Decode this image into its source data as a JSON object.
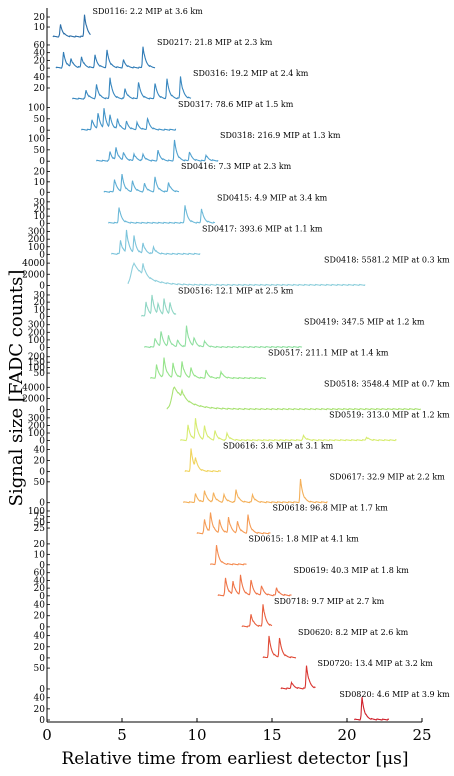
{
  "chart_data": {
    "type": "line",
    "xlabel": "Relative time from earliest detector [μs]",
    "ylabel": "Signal size [FADC counts]",
    "xlim": [
      0,
      25
    ],
    "xticks": [
      "0",
      "5",
      "10",
      "15",
      "20",
      "25"
    ],
    "grid": false,
    "panels": [
      {
        "name": "SD0116",
        "label": "SD0116: 2.2 MIP at 3.6 km",
        "color": "#2b6ea8",
        "yticks": [
          "20",
          "10"
        ],
        "ymax": 25,
        "t_start": 0.4,
        "t_end": 2.9,
        "peaks": [
          [
            0.9,
            12
          ],
          [
            2.5,
            22
          ]
        ]
      },
      {
        "name": "SD0217",
        "label": "SD0217: 21.8 MIP at 2.3 km",
        "color": "#2f7bb6",
        "yticks": [
          "60",
          "40",
          "20",
          "0"
        ],
        "ymax": 65,
        "t_start": 0.6,
        "t_end": 7.2,
        "peaks": [
          [
            1.1,
            40
          ],
          [
            1.6,
            22
          ],
          [
            2.3,
            28
          ],
          [
            3.2,
            32
          ],
          [
            4.0,
            45
          ],
          [
            5.1,
            20
          ],
          [
            6.4,
            55
          ]
        ]
      },
      {
        "name": "SD0316",
        "label": "SD0316: 19.2 MIP at 2.4 km",
        "color": "#3887bf",
        "yticks": [
          "40",
          "20"
        ],
        "ymax": 45,
        "t_start": 1.7,
        "t_end": 9.6,
        "peaks": [
          [
            2.6,
            15
          ],
          [
            3.3,
            25
          ],
          [
            4.2,
            38
          ],
          [
            5.2,
            18
          ],
          [
            6.1,
            30
          ],
          [
            7.2,
            28
          ],
          [
            8.0,
            35
          ],
          [
            8.9,
            40
          ]
        ]
      },
      {
        "name": "SD0317",
        "label": "SD0317: 78.6 MIP at 1.5 km",
        "color": "#4394c8",
        "yticks": [
          "100",
          "50",
          "0"
        ],
        "ymax": 110,
        "t_start": 2.3,
        "t_end": 8.6,
        "peaks": [
          [
            3.0,
            45
          ],
          [
            3.4,
            70
          ],
          [
            3.8,
            85
          ],
          [
            4.2,
            55
          ],
          [
            4.7,
            45
          ],
          [
            5.3,
            35
          ],
          [
            6.0,
            30
          ],
          [
            6.7,
            50
          ]
        ]
      },
      {
        "name": "SD0318",
        "label": "SD0318: 216.9 MIP at 1.3 km",
        "color": "#4fa0cf",
        "yticks": [
          "100",
          "50",
          "0"
        ],
        "ymax": 110,
        "t_start": 3.3,
        "t_end": 11.4,
        "peaks": [
          [
            4.2,
            40
          ],
          [
            4.6,
            55
          ],
          [
            5.1,
            35
          ],
          [
            5.8,
            30
          ],
          [
            6.4,
            28
          ],
          [
            7.4,
            45
          ],
          [
            8.5,
            90
          ],
          [
            9.5,
            40
          ],
          [
            10.6,
            25
          ]
        ]
      },
      {
        "name": "SD0416",
        "label": "SD0416: 7.3 MIP at 2.3 km",
        "color": "#5cadd4",
        "yticks": [
          "20",
          "10",
          "0"
        ],
        "ymax": 24,
        "t_start": 3.8,
        "t_end": 8.8,
        "peaks": [
          [
            4.5,
            12
          ],
          [
            5.0,
            16
          ],
          [
            5.7,
            10
          ],
          [
            6.5,
            8
          ],
          [
            7.2,
            14
          ],
          [
            8.1,
            9
          ]
        ]
      },
      {
        "name": "SD0415",
        "label": "SD0415: 4.9 MIP at 3.4 km",
        "color": "#6cb9d8",
        "yticks": [
          "30",
          "20",
          "10",
          "0"
        ],
        "ymax": 35,
        "t_start": 4.1,
        "t_end": 11.2,
        "peaks": [
          [
            4.8,
            22
          ],
          [
            9.2,
            25
          ],
          [
            10.3,
            20
          ]
        ]
      },
      {
        "name": "SD0417",
        "label": "SD0417: 393.6 MIP at 1.1 km",
        "color": "#7cc4db",
        "yticks": [
          "300",
          "200",
          "100",
          "0"
        ],
        "ymax": 330,
        "t_start": 4.3,
        "t_end": 10.2,
        "peaks": [
          [
            4.9,
            180
          ],
          [
            5.3,
            300
          ],
          [
            5.8,
            220
          ],
          [
            6.4,
            140
          ],
          [
            7.1,
            90
          ]
        ]
      },
      {
        "name": "SD0418",
        "label": "SD0418: 5581.2 MIP at 0.3 km",
        "color": "#8ecfdc",
        "yticks": [
          "4000",
          "2000",
          "0"
        ],
        "ymax": 4500,
        "t_start": 5.4,
        "t_end": 21.2,
        "peaks": [
          [
            5.8,
            3800
          ],
          [
            6.4,
            2000
          ]
        ]
      },
      {
        "name": "SD0516",
        "label": "SD0516: 12.1 MIP at 2.5 km",
        "color": "#8fd6c4",
        "yticks": [
          "30",
          "20",
          "10",
          "0"
        ],
        "ymax": 35,
        "t_start": 6.3,
        "t_end": 8.6,
        "peaks": [
          [
            6.6,
            20
          ],
          [
            7.0,
            28
          ],
          [
            7.4,
            15
          ],
          [
            7.8,
            22
          ],
          [
            8.2,
            16
          ]
        ]
      },
      {
        "name": "SD0419",
        "label": "SD0419: 347.5 MIP at 1.2 km",
        "color": "#8fdfa0",
        "yticks": [
          "300",
          "200",
          "100",
          "0"
        ],
        "ymax": 330,
        "t_start": 6.5,
        "t_end": 17.0,
        "peaks": [
          [
            7.2,
            120
          ],
          [
            7.6,
            200
          ],
          [
            8.1,
            140
          ],
          [
            8.7,
            90
          ],
          [
            9.3,
            280
          ],
          [
            9.8,
            110
          ],
          [
            10.5,
            80
          ]
        ]
      },
      {
        "name": "SD0517",
        "label": "SD0517: 211.1 MIP at 1.4 km",
        "color": "#95e48a",
        "yticks": [
          "200",
          "150",
          "100",
          "50"
        ],
        "ymax": 230,
        "t_start": 6.9,
        "t_end": 14.6,
        "peaks": [
          [
            7.3,
            120
          ],
          [
            7.8,
            180
          ],
          [
            8.4,
            130
          ],
          [
            9.0,
            150
          ],
          [
            9.6,
            90
          ],
          [
            10.6,
            70
          ],
          [
            11.6,
            60
          ]
        ]
      },
      {
        "name": "SD0518",
        "label": "SD0518: 3548.4 MIP at 0.7 km",
        "color": "#a8e272",
        "yticks": [
          "4000",
          "2000",
          "0"
        ],
        "ymax": 4500,
        "t_start": 8.0,
        "t_end": 24.9,
        "peaks": [
          [
            8.5,
            3900
          ],
          [
            9.0,
            1200
          ]
        ]
      },
      {
        "name": "SD0519",
        "label": "SD0519: 313.0 MIP at 1.2 km",
        "color": "#d7ec70",
        "yticks": [
          "300",
          "200",
          "100",
          "0"
        ],
        "ymax": 330,
        "t_start": 8.9,
        "t_end": 23.3,
        "peaks": [
          [
            9.4,
            200
          ],
          [
            9.9,
            280
          ],
          [
            10.5,
            180
          ],
          [
            11.2,
            120
          ],
          [
            12.0,
            90
          ],
          [
            17.1,
            60
          ],
          [
            21.3,
            40
          ]
        ]
      },
      {
        "name": "SD0616",
        "label": "SD0616: 3.6 MIP at 3.1 km",
        "color": "#f0d45e",
        "yticks": [
          "40",
          "20",
          "0"
        ],
        "ymax": 45,
        "t_start": 9.2,
        "t_end": 11.6,
        "peaks": [
          [
            9.6,
            40
          ],
          [
            9.9,
            18
          ]
        ]
      },
      {
        "name": "SD0617",
        "label": "SD0617: 32.9 MIP at 2.2 km",
        "color": "#f4b05a",
        "yticks": [
          "50",
          "0"
        ],
        "ymax": 60,
        "t_start": 9.1,
        "t_end": 18.7,
        "peaks": [
          [
            9.9,
            20
          ],
          [
            10.5,
            28
          ],
          [
            11.1,
            22
          ],
          [
            11.8,
            18
          ],
          [
            12.6,
            30
          ],
          [
            13.7,
            18
          ],
          [
            16.9,
            55
          ]
        ]
      },
      {
        "name": "SD0618",
        "label": "SD0618: 96.8 MIP at 1.7 km",
        "color": "#f59b55",
        "yticks": [
          "100",
          "75",
          "50",
          "25"
        ],
        "ymax": 110,
        "t_start": 10.0,
        "t_end": 14.9,
        "peaks": [
          [
            10.5,
            60
          ],
          [
            10.9,
            85
          ],
          [
            11.5,
            55
          ],
          [
            12.1,
            70
          ],
          [
            12.7,
            50
          ],
          [
            13.4,
            80
          ]
        ]
      },
      {
        "name": "SD0615",
        "label": "SD0615: 1.8 MIP at 4.1 km",
        "color": "#f48a4f",
        "yticks": [
          "20",
          "10",
          "0"
        ],
        "ymax": 24,
        "t_start": 10.9,
        "t_end": 13.3,
        "peaks": [
          [
            11.3,
            18
          ]
        ]
      },
      {
        "name": "SD0619",
        "label": "SD0619: 40.3 MIP at 1.8 km",
        "color": "#ef7447",
        "yticks": [
          "60",
          "40",
          "20",
          "0"
        ],
        "ymax": 65,
        "t_start": 11.4,
        "t_end": 16.3,
        "peaks": [
          [
            11.9,
            45
          ],
          [
            12.4,
            35
          ],
          [
            12.9,
            50
          ],
          [
            13.6,
            40
          ],
          [
            14.3,
            25
          ],
          [
            15.3,
            20
          ]
        ]
      },
      {
        "name": "SD0718",
        "label": "SD0718: 9.7 MIP at 2.7 km",
        "color": "#e85f3e",
        "yticks": [
          "40",
          "20",
          "0"
        ],
        "ymax": 45,
        "t_start": 13.0,
        "t_end": 15.0,
        "peaks": [
          [
            13.6,
            22
          ],
          [
            14.4,
            40
          ]
        ]
      },
      {
        "name": "SD0620",
        "label": "SD0620: 8.2 MIP at 2.6 km",
        "color": "#e04a36",
        "yticks": [
          "40",
          "20",
          "0"
        ],
        "ymax": 45,
        "t_start": 14.4,
        "t_end": 16.6,
        "peaks": [
          [
            14.8,
            38
          ],
          [
            15.5,
            35
          ]
        ]
      },
      {
        "name": "SD0720",
        "label": "SD0720: 13.4 MIP at 3.2 km",
        "color": "#d93430",
        "yticks": [
          "50",
          "0"
        ],
        "ymax": 60,
        "t_start": 15.6,
        "t_end": 17.9,
        "peaks": [
          [
            16.3,
            15
          ],
          [
            17.3,
            55
          ]
        ]
      },
      {
        "name": "SD0820",
        "label": "SD0820: 4.6 MIP at 3.9 km",
        "color": "#d0202b",
        "yticks": [
          "40",
          "20",
          "0"
        ],
        "ymax": 45,
        "t_start": 20.5,
        "t_end": 22.8,
        "peaks": [
          [
            21.0,
            40
          ]
        ]
      }
    ]
  }
}
